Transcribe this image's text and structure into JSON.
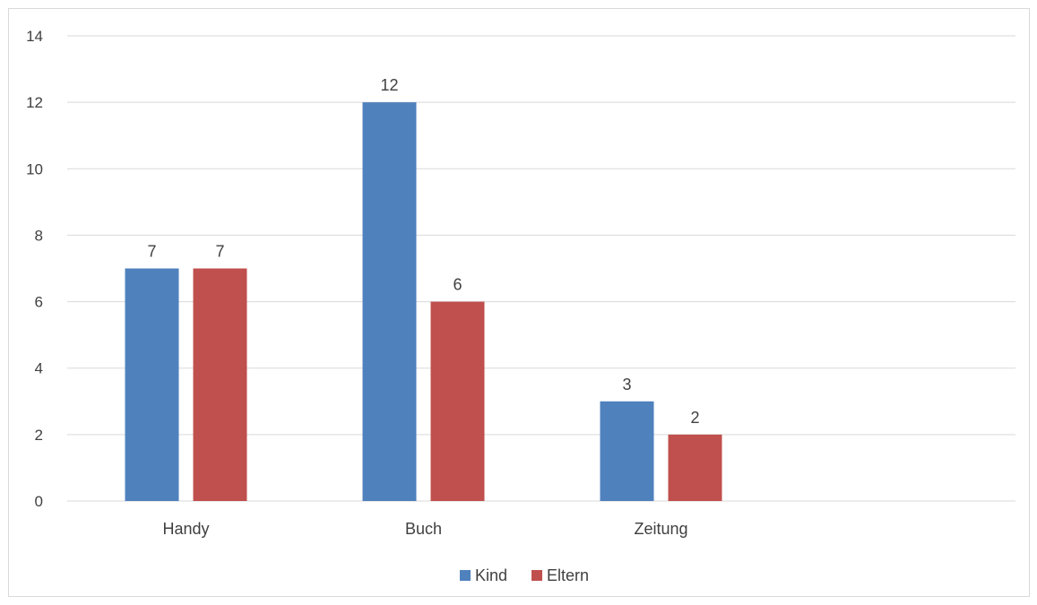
{
  "chart_data": {
    "type": "bar",
    "categories": [
      "Handy",
      "Buch",
      "Zeitung"
    ],
    "series": [
      {
        "name": "Kind",
        "values": [
          7,
          12,
          3
        ],
        "color": "#4f81bd"
      },
      {
        "name": "Eltern",
        "values": [
          7,
          6,
          2
        ],
        "color": "#c0504d"
      }
    ],
    "ylim": [
      0,
      14
    ],
    "yticks": [
      0,
      2,
      4,
      6,
      8,
      10,
      12,
      14
    ],
    "grid": true,
    "legend": "bottom",
    "data_labels": true,
    "gridline_color": "#d9d9d9"
  }
}
